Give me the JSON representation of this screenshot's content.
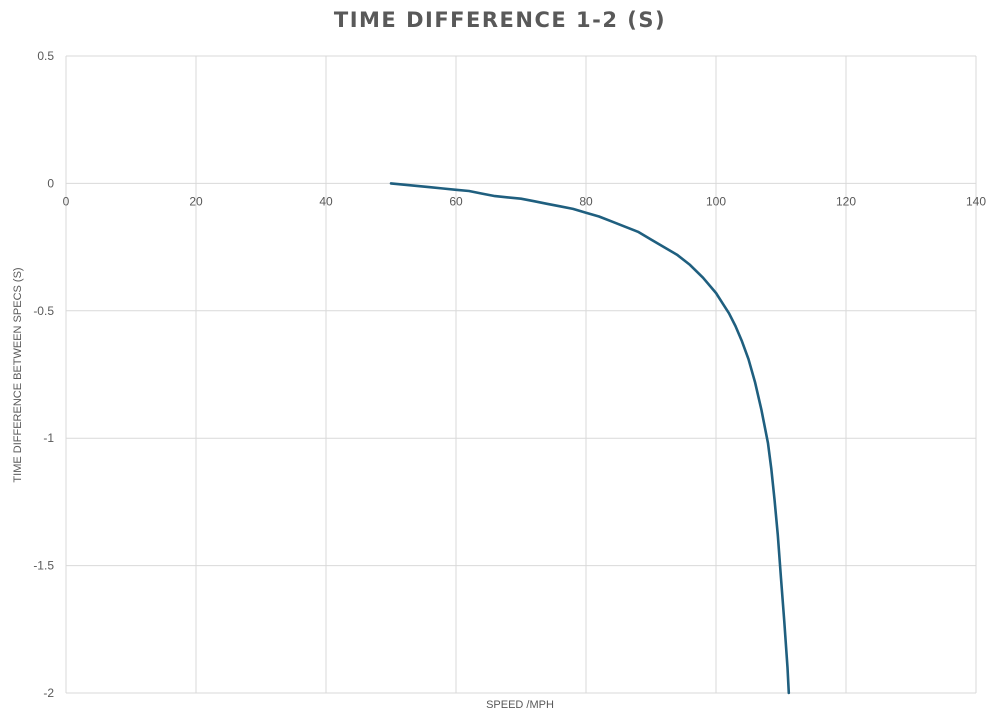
{
  "chart_data": {
    "type": "line",
    "title": "TIME DIFFERENCE 1-2 (S)",
    "xlabel": "SPEED /MPH",
    "ylabel": "TIME DIFFERENCE BETWEEN SPECS (S)",
    "xlim": [
      0,
      140
    ],
    "ylim": [
      -2,
      0.5
    ],
    "x_ticks": [
      0,
      20,
      40,
      60,
      80,
      100,
      120,
      140
    ],
    "y_ticks": [
      0.5,
      0,
      -0.5,
      -1,
      -1.5,
      -2
    ],
    "x_tick_labels": [
      "0",
      "20",
      "40",
      "60",
      "80",
      "100",
      "120",
      "140"
    ],
    "y_tick_labels": [
      "0.5",
      "0",
      "-0.5",
      "-1",
      "-1.5",
      "-2"
    ],
    "grid": true,
    "legend": "none",
    "series_color": "#1f5f7f",
    "grid_color": "#d9d9d9",
    "series": [
      {
        "x": [
          50,
          52,
          54,
          56,
          58,
          60,
          62,
          64,
          66,
          68,
          70,
          72,
          74,
          76,
          78,
          80,
          82,
          84,
          86,
          88,
          90,
          92,
          94,
          96,
          98,
          100,
          101,
          102,
          103,
          104,
          105,
          106,
          107,
          108,
          108.5,
          109,
          109.5,
          110,
          110.5,
          111,
          111.2
        ],
        "y": [
          0,
          -0.005,
          -0.01,
          -0.015,
          -0.02,
          -0.025,
          -0.03,
          -0.04,
          -0.05,
          -0.055,
          -0.06,
          -0.07,
          -0.08,
          -0.09,
          -0.1,
          -0.115,
          -0.13,
          -0.15,
          -0.17,
          -0.19,
          -0.22,
          -0.25,
          -0.28,
          -0.32,
          -0.37,
          -0.43,
          -0.47,
          -0.51,
          -0.56,
          -0.62,
          -0.69,
          -0.78,
          -0.89,
          -1.02,
          -1.12,
          -1.24,
          -1.38,
          -1.55,
          -1.72,
          -1.9,
          -2.0
        ]
      }
    ]
  }
}
